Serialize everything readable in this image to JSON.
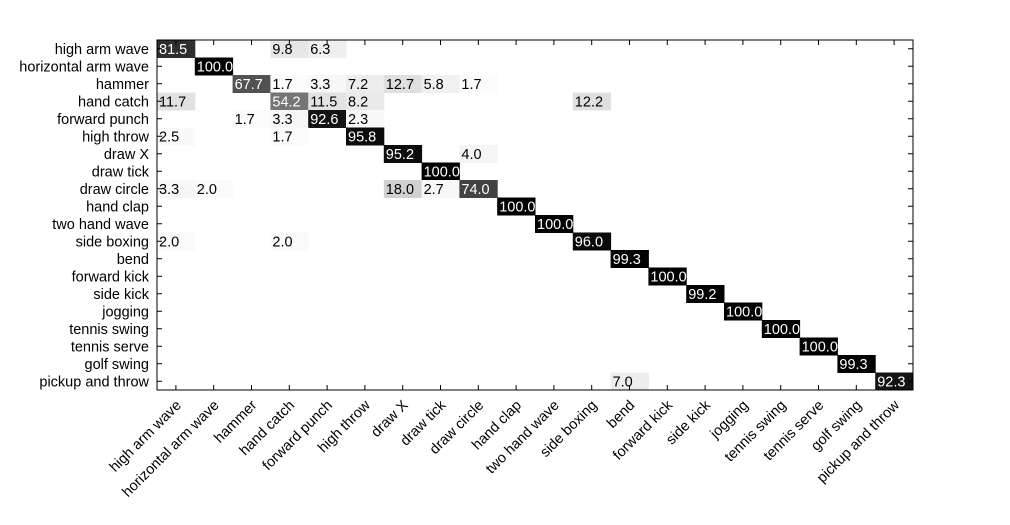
{
  "chart_data": {
    "type": "heatmap",
    "title": "",
    "xlabel": "",
    "ylabel": "",
    "categories_x": [
      "high arm wave",
      "horizontal arm wave",
      "hammer",
      "hand catch",
      "forward punch",
      "high throw",
      "draw X",
      "draw tick",
      "draw circle",
      "hand clap",
      "two hand wave",
      "side boxing",
      "bend",
      "forward kick",
      "side kick",
      "jogging",
      "tennis swing",
      "tennis serve",
      "golf swing",
      "pickup and throw"
    ],
    "categories_y": [
      "high arm wave",
      "horizontal arm wave",
      "hammer",
      "hand catch",
      "forward punch",
      "high throw",
      "draw X",
      "draw tick",
      "draw circle",
      "hand clap",
      "two hand wave",
      "side boxing",
      "bend",
      "forward kick",
      "side kick",
      "jogging",
      "tennis swing",
      "tennis serve",
      "golf swing",
      "pickup and throw"
    ],
    "value_range": [
      0,
      100
    ],
    "colormap": "white-to-black",
    "cells": [
      {
        "row": 0,
        "col": 0,
        "value": 81.5
      },
      {
        "row": 0,
        "col": 3,
        "value": 9.8
      },
      {
        "row": 0,
        "col": 4,
        "value": 6.3
      },
      {
        "row": 1,
        "col": 1,
        "value": 100.0
      },
      {
        "row": 2,
        "col": 2,
        "value": 67.7
      },
      {
        "row": 2,
        "col": 3,
        "value": 1.7
      },
      {
        "row": 2,
        "col": 4,
        "value": 3.3
      },
      {
        "row": 2,
        "col": 5,
        "value": 7.2
      },
      {
        "row": 2,
        "col": 6,
        "value": 12.7
      },
      {
        "row": 2,
        "col": 7,
        "value": 5.8
      },
      {
        "row": 2,
        "col": 8,
        "value": 1.7
      },
      {
        "row": 3,
        "col": 0,
        "value": 11.7
      },
      {
        "row": 3,
        "col": 3,
        "value": 54.2
      },
      {
        "row": 3,
        "col": 4,
        "value": 11.5
      },
      {
        "row": 3,
        "col": 5,
        "value": 8.2
      },
      {
        "row": 3,
        "col": 11,
        "value": 12.2
      },
      {
        "row": 4,
        "col": 2,
        "value": 1.7
      },
      {
        "row": 4,
        "col": 3,
        "value": 3.3
      },
      {
        "row": 4,
        "col": 4,
        "value": 92.6
      },
      {
        "row": 4,
        "col": 5,
        "value": 2.3
      },
      {
        "row": 5,
        "col": 0,
        "value": 2.5
      },
      {
        "row": 5,
        "col": 3,
        "value": 1.7
      },
      {
        "row": 5,
        "col": 5,
        "value": 95.8
      },
      {
        "row": 6,
        "col": 6,
        "value": 95.2
      },
      {
        "row": 6,
        "col": 8,
        "value": 4.0
      },
      {
        "row": 7,
        "col": 7,
        "value": 100.0
      },
      {
        "row": 8,
        "col": 0,
        "value": 3.3
      },
      {
        "row": 8,
        "col": 1,
        "value": 2.0
      },
      {
        "row": 8,
        "col": 6,
        "value": 18.0
      },
      {
        "row": 8,
        "col": 7,
        "value": 2.7
      },
      {
        "row": 8,
        "col": 8,
        "value": 74.0
      },
      {
        "row": 9,
        "col": 9,
        "value": 100.0
      },
      {
        "row": 10,
        "col": 10,
        "value": 100.0
      },
      {
        "row": 11,
        "col": 0,
        "value": 2.0
      },
      {
        "row": 11,
        "col": 3,
        "value": 2.0
      },
      {
        "row": 11,
        "col": 11,
        "value": 96.0
      },
      {
        "row": 12,
        "col": 12,
        "value": 99.3
      },
      {
        "row": 13,
        "col": 13,
        "value": 100.0
      },
      {
        "row": 14,
        "col": 14,
        "value": 99.2
      },
      {
        "row": 15,
        "col": 15,
        "value": 100.0
      },
      {
        "row": 16,
        "col": 16,
        "value": 100.0
      },
      {
        "row": 17,
        "col": 17,
        "value": 100.0
      },
      {
        "row": 18,
        "col": 18,
        "value": 99.3
      },
      {
        "row": 19,
        "col": 12,
        "value": 7.0
      },
      {
        "row": 19,
        "col": 19,
        "value": 92.3
      }
    ]
  }
}
